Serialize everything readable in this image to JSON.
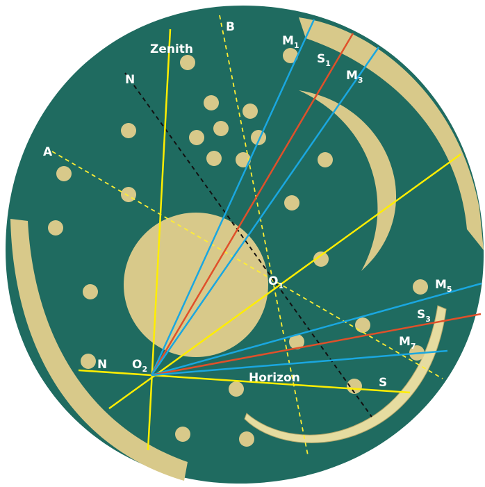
{
  "labels": [
    {
      "text": "Zenith"
    },
    {
      "text": "B"
    },
    {
      "text": "N"
    },
    {
      "text": "M",
      "sub": "1"
    },
    {
      "text": "S",
      "sub": "1"
    },
    {
      "text": "M",
      "sub": "3"
    },
    {
      "text": "A"
    },
    {
      "text": "O",
      "sub": "1"
    },
    {
      "text": "M",
      "sub": "5"
    },
    {
      "text": "S",
      "sub": "3"
    },
    {
      "text": "M",
      "sub": "7"
    },
    {
      "text": "N"
    },
    {
      "text": "O",
      "sub": "2"
    },
    {
      "text": "Horizon"
    },
    {
      "text": "S"
    }
  ]
}
